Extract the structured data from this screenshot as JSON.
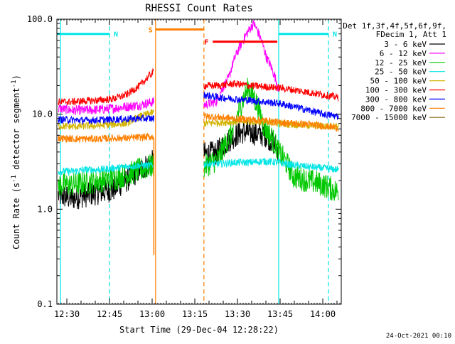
{
  "chart_data": {
    "type": "line",
    "title": "RHESSI Count Rates",
    "xlabel": "Start Time (29-Dec-04 12:28:22)",
    "ylabel_main": "Count Rate (s",
    "ylabel_sup1": "-1",
    "ylabel_mid": " detector segment",
    "ylabel_sup2": "-1",
    "ylabel_end": ")",
    "y_scale": "log",
    "ylim": [
      0.1,
      100.0
    ],
    "xlim_minutes": [
      -3.5,
      96.5
    ],
    "x_ticks": [
      {
        "m": 0,
        "label": "12:30"
      },
      {
        "m": 15,
        "label": "12:45"
      },
      {
        "m": 30,
        "label": "13:00"
      },
      {
        "m": 45,
        "label": "13:15"
      },
      {
        "m": 60,
        "label": "13:30"
      },
      {
        "m": 75,
        "label": "13:45"
      },
      {
        "m": 90,
        "label": "14:00"
      }
    ],
    "y_ticks": [
      {
        "v": 0.1,
        "label": "0.1"
      },
      {
        "v": 1.0,
        "label": "1.0"
      },
      {
        "v": 10.0,
        "label": "10.0"
      },
      {
        "v": 100.0,
        "label": "100.0"
      }
    ],
    "legend_header": [
      "Det 1f,3f,4f,5f,6f,9f,",
      "FDecim 1, Att 1"
    ],
    "series": [
      {
        "name": "3 - 6 keV",
        "color": "#000000",
        "pre": [
          1.4,
          1.3,
          1.4,
          1.5,
          1.6,
          2.0,
          2.6,
          3.2
        ],
        "post": [
          3.8,
          3.9,
          5.3,
          6.5,
          6.3,
          6.0,
          4.2
        ]
      },
      {
        "name": "6 - 12 keV",
        "color": "#ff00ff",
        "pre": [
          11.5,
          11.0,
          11.0,
          11.2,
          11.5,
          12.0,
          12.5,
          13.5
        ],
        "post": [
          12.5,
          13.5,
          24.0,
          55.0,
          90.0,
          40.0,
          18.0
        ]
      },
      {
        "name": "12 - 25 keV",
        "color": "#00c800",
        "pre": [
          1.8,
          1.8,
          1.9,
          2.0,
          2.1,
          2.3,
          2.6,
          2.9
        ],
        "post": [
          2.8,
          3.4,
          6.8,
          19.0,
          7.5,
          4.0,
          2.2,
          2.0,
          1.8,
          1.5
        ]
      },
      {
        "name": "25 - 50 keV",
        "color": "#00e5e5",
        "pre": [
          2.5,
          2.5,
          2.6,
          2.6,
          2.7,
          2.8,
          2.9,
          2.9
        ],
        "post": [
          3.0,
          3.0,
          3.1,
          3.1,
          3.2,
          3.1,
          2.9,
          2.8,
          2.7,
          2.6
        ]
      },
      {
        "name": "50 - 100 keV",
        "color": "#d2b400",
        "pre": [
          7.5,
          7.4,
          7.5,
          7.6,
          7.8,
          8.0,
          9.5,
          10.5
        ],
        "post": [
          8.0,
          8.2,
          8.3,
          8.4,
          8.3,
          8.0,
          7.8,
          7.6,
          7.5,
          7.5
        ]
      },
      {
        "name": "100 - 300 keV",
        "color": "#ff0000",
        "pre": [
          13.5,
          13.5,
          13.8,
          14.0,
          14.5,
          16.0,
          20.0,
          28.0
        ],
        "post": [
          20.0,
          20.0,
          21.0,
          20.0,
          19.5,
          19.0,
          18.0,
          17.0,
          16.0,
          15.0
        ]
      },
      {
        "name": "300 - 800 keV",
        "color": "#0000ff",
        "pre": [
          8.8,
          8.7,
          8.6,
          8.7,
          8.8,
          8.9,
          9.0,
          9.0
        ],
        "post": [
          16.0,
          15.0,
          14.5,
          14.0,
          13.5,
          13.0,
          12.0,
          11.0,
          10.0,
          9.5
        ]
      },
      {
        "name": "800 - 7000 keV",
        "color": "#ff7f00",
        "pre": [
          5.6,
          5.5,
          5.5,
          5.5,
          5.6,
          5.6,
          5.7,
          5.8
        ],
        "post": [
          9.5,
          9.3,
          9.0,
          8.8,
          8.6,
          8.2,
          8.0,
          7.8,
          7.5,
          7.2
        ]
      },
      {
        "name": "7000 - 15000 keV",
        "color": "#8b6914",
        "pre": [],
        "post": []
      }
    ],
    "attenuator_line_color": "#ff7f00",
    "annotations": [
      {
        "label": "N",
        "color": "#00e5e5",
        "t_start": -3.5,
        "t_end": 15.0,
        "level": 70.0
      },
      {
        "label": "N",
        "color": "#00e5e5",
        "t_start": 74.5,
        "t_end": 92.0,
        "level": 70.0
      },
      {
        "label": "S",
        "color": "#ff7f00",
        "t_start": 31.2,
        "t_end": 48.2,
        "level": 78.0
      },
      {
        "label": "F",
        "color": "#ff0000",
        "t_start": 51.3,
        "t_end": 74.0,
        "level": 58.0
      }
    ],
    "vlines": [
      {
        "t": -2.2,
        "color": "#00e5e5",
        "style": "solid"
      },
      {
        "t": 15.0,
        "color": "#00e5e5",
        "style": "dashed"
      },
      {
        "t": 31.2,
        "color": "#ff7f00",
        "style": "solid"
      },
      {
        "t": 48.2,
        "color": "#ff7f00",
        "style": "dashed"
      },
      {
        "t": 74.5,
        "color": "#00e5e5",
        "style": "solid"
      },
      {
        "t": 92.0,
        "color": "#00e5e5",
        "style": "dashed"
      }
    ],
    "footer_date": "24-Oct-2021 00:10"
  }
}
